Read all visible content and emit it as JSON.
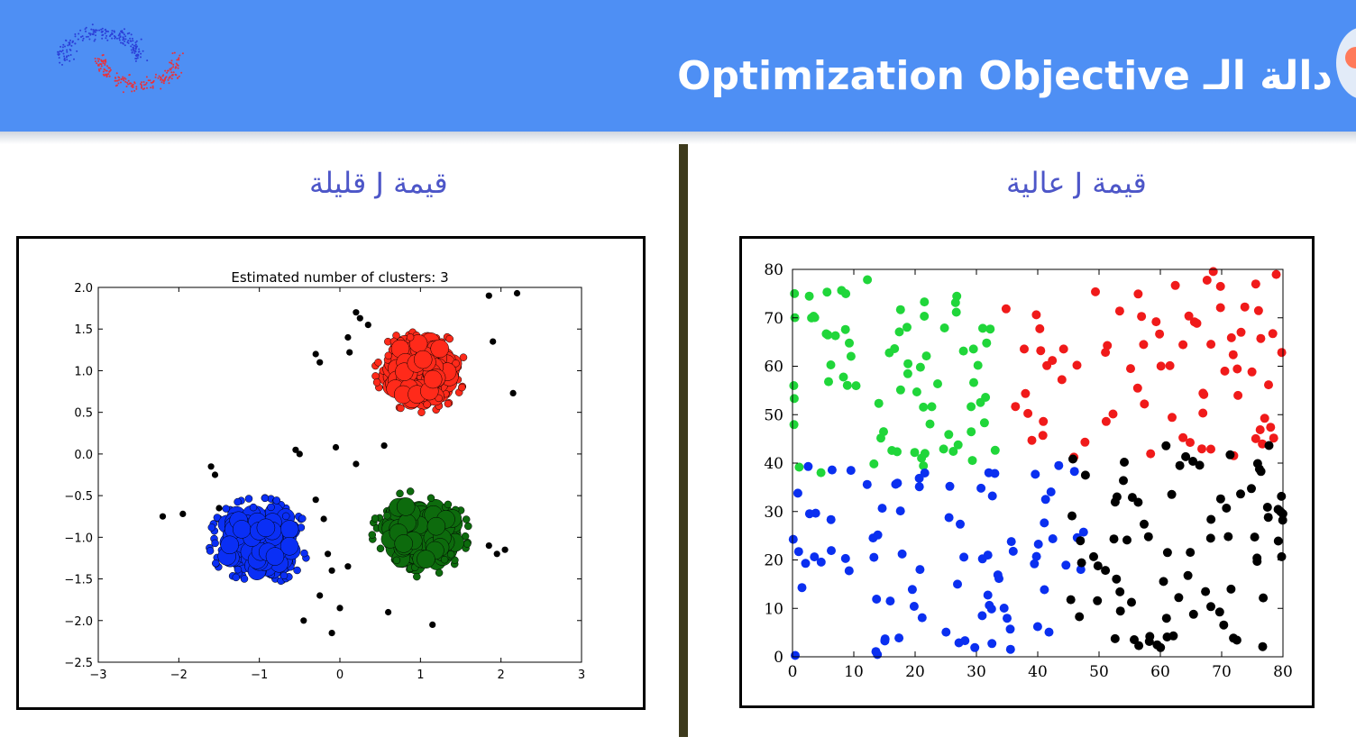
{
  "header": {
    "title": "Optimization Objective دالة الـ",
    "background_color": "#4e8ff4",
    "logo": "two-moons-logo"
  },
  "captions": {
    "left": "قيمة J قليلة",
    "right": "قيمة J عالية"
  },
  "chart_data": [
    {
      "type": "scatter",
      "title": "Estimated number of clusters: 3",
      "xlim": [
        -3,
        3
      ],
      "ylim": [
        -2.5,
        2.0
      ],
      "xticks": [
        "−3",
        "−2",
        "−1",
        "0",
        "1",
        "2",
        "3"
      ],
      "yticks": [
        "−2.5",
        "−2.0",
        "−1.5",
        "−1.0",
        "−0.5",
        "0.0",
        "0.5",
        "1.0",
        "1.5",
        "2.0"
      ],
      "grid": false,
      "clusters": [
        {
          "color": "#ff2a1a",
          "center": [
            1.0,
            1.0
          ],
          "spread": [
            0.45,
            0.4
          ],
          "count": 190
        },
        {
          "color": "#0a2ff5",
          "center": [
            -1.0,
            -1.05
          ],
          "spread": [
            0.5,
            0.42
          ],
          "count": 200
        },
        {
          "color": "#0d6b0d",
          "center": [
            1.0,
            -0.95
          ],
          "spread": [
            0.48,
            0.42
          ],
          "count": 200
        }
      ],
      "noise_color": "#000000",
      "noise": [
        [
          -2.2,
          -0.75
        ],
        [
          -1.95,
          -0.72
        ],
        [
          -1.6,
          -0.15
        ],
        [
          -1.55,
          -0.25
        ],
        [
          -1.5,
          -0.65
        ],
        [
          -0.55,
          0.05
        ],
        [
          -0.5,
          0.0
        ],
        [
          -0.05,
          0.08
        ],
        [
          -0.3,
          -0.55
        ],
        [
          -0.2,
          -0.78
        ],
        [
          -0.15,
          -1.2
        ],
        [
          -0.1,
          -1.4
        ],
        [
          0.1,
          -1.35
        ],
        [
          -0.25,
          -1.7
        ],
        [
          0.0,
          -1.85
        ],
        [
          -0.45,
          -2.0
        ],
        [
          -0.1,
          -2.15
        ],
        [
          0.55,
          0.1
        ],
        [
          0.2,
          -0.12
        ],
        [
          1.15,
          -2.05
        ],
        [
          0.6,
          -1.9
        ],
        [
          1.95,
          -1.2
        ],
        [
          2.05,
          -1.15
        ],
        [
          1.85,
          -1.1
        ],
        [
          -0.3,
          1.2
        ],
        [
          -0.25,
          1.1
        ],
        [
          0.1,
          1.4
        ],
        [
          0.2,
          1.7
        ],
        [
          0.25,
          1.63
        ],
        [
          0.35,
          1.55
        ],
        [
          0.12,
          1.22
        ],
        [
          1.85,
          1.9
        ],
        [
          2.2,
          1.93
        ],
        [
          2.15,
          0.73
        ],
        [
          1.9,
          1.35
        ]
      ]
    },
    {
      "type": "scatter",
      "title": "",
      "xlim": [
        0,
        80
      ],
      "ylim": [
        0,
        80
      ],
      "xticks": [
        "0",
        "10",
        "20",
        "30",
        "40",
        "50",
        "60",
        "70",
        "80"
      ],
      "yticks": [
        "0",
        "10",
        "20",
        "30",
        "40",
        "50",
        "60",
        "70",
        "80"
      ],
      "grid": false,
      "clusters": [
        {
          "color": "#20d63a",
          "x_range": [
            0,
            35
          ],
          "y_range": [
            38,
            78
          ],
          "count": 75
        },
        {
          "color": "#f01a1a",
          "x_range": [
            34,
            80
          ],
          "y_range": [
            40,
            80
          ],
          "count": 75
        },
        {
          "color": "#0a2ff0",
          "x_range": [
            0,
            48
          ],
          "y_range": [
            0,
            40
          ],
          "count": 85
        },
        {
          "color": "#000000",
          "x_range": [
            45,
            80
          ],
          "y_range": [
            0,
            44
          ],
          "count": 80
        }
      ]
    }
  ]
}
